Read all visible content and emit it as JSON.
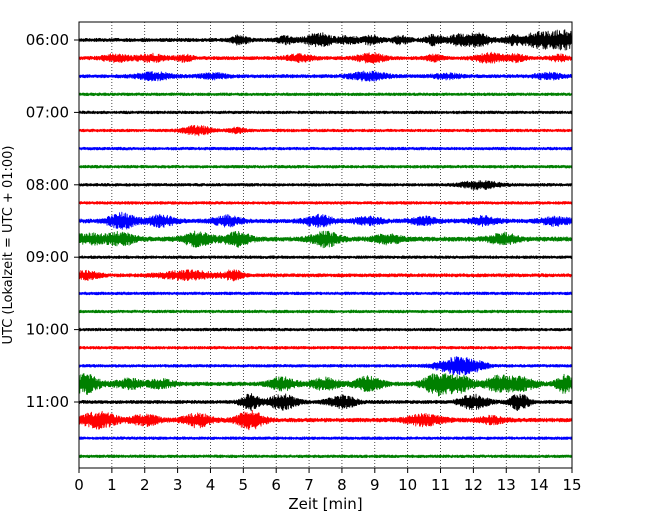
{
  "chart_data": {
    "type": "line",
    "title": "",
    "xlabel": "Zeit  [min]",
    "ylabel": "UTC (Lokalzeit = UTC + 01:00)",
    "xlim": [
      0,
      15
    ],
    "x_ticks": [
      0,
      1,
      2,
      3,
      4,
      5,
      6,
      7,
      8,
      9,
      10,
      11,
      12,
      13,
      14,
      15
    ],
    "y_ticks": [
      {
        "label": "06:00",
        "row": 0
      },
      {
        "label": "07:00",
        "row": 4
      },
      {
        "label": "08:00",
        "row": 8
      },
      {
        "label": "09:00",
        "row": 12
      },
      {
        "label": "10:00",
        "row": 16
      },
      {
        "label": "11:00",
        "row": 20
      }
    ],
    "grid": "vertical dotted at each minute",
    "row_color_cycle": [
      "#000000",
      "#ff0000",
      "#0000ff",
      "#008000"
    ],
    "rows": [
      {
        "start": "06:00",
        "color": "#000000",
        "base": 0.3,
        "bursts": [
          [
            4.9,
            0.7,
            0.2
          ],
          [
            6.3,
            0.6,
            0.2
          ],
          [
            7.3,
            1.1,
            0.3
          ],
          [
            8.2,
            0.6,
            0.2
          ],
          [
            8.9,
            0.8,
            0.2
          ],
          [
            9.8,
            0.6,
            0.2
          ],
          [
            10.8,
            0.8,
            0.2
          ],
          [
            11.5,
            0.7,
            0.2
          ],
          [
            12.1,
            1.1,
            0.3
          ],
          [
            13.2,
            0.7,
            0.2
          ],
          [
            13.9,
            1.1,
            0.3
          ],
          [
            14.5,
            1.2,
            0.3
          ],
          [
            14.9,
            1.0,
            0.2
          ]
        ]
      },
      {
        "start": "06:15",
        "color": "#ff0000",
        "base": 0.3,
        "bursts": [
          [
            1.1,
            0.6,
            0.3
          ],
          [
            2.2,
            0.6,
            0.3
          ],
          [
            3.2,
            0.5,
            0.2
          ],
          [
            6.7,
            0.6,
            0.3
          ],
          [
            8.9,
            0.8,
            0.3
          ],
          [
            10.8,
            0.5,
            0.2
          ],
          [
            12.5,
            0.8,
            0.3
          ],
          [
            13.3,
            0.6,
            0.2
          ],
          [
            14.6,
            0.5,
            0.2
          ]
        ]
      },
      {
        "start": "06:30",
        "color": "#0000ff",
        "base": 0.3,
        "bursts": [
          [
            2.3,
            0.6,
            0.4
          ],
          [
            4.1,
            0.4,
            0.3
          ],
          [
            8.8,
            0.7,
            0.4
          ],
          [
            11.2,
            0.4,
            0.3
          ],
          [
            14.3,
            0.5,
            0.3
          ]
        ]
      },
      {
        "start": "06:45",
        "color": "#008000",
        "base": 0.25,
        "bursts": []
      },
      {
        "start": "07:00",
        "color": "#000000",
        "base": 0.25,
        "bursts": []
      },
      {
        "start": "07:15",
        "color": "#ff0000",
        "base": 0.25,
        "bursts": [
          [
            3.6,
            0.8,
            0.3
          ],
          [
            4.8,
            0.4,
            0.2
          ]
        ]
      },
      {
        "start": "07:30",
        "color": "#0000ff",
        "base": 0.25,
        "bursts": []
      },
      {
        "start": "07:45",
        "color": "#008000",
        "base": 0.25,
        "bursts": []
      },
      {
        "start": "08:00",
        "color": "#000000",
        "base": 0.25,
        "bursts": [
          [
            12.2,
            0.7,
            0.4
          ]
        ]
      },
      {
        "start": "08:15",
        "color": "#ff0000",
        "base": 0.25,
        "bursts": []
      },
      {
        "start": "08:30",
        "color": "#0000ff",
        "base": 0.35,
        "bursts": [
          [
            1.3,
            1.3,
            0.3
          ],
          [
            2.5,
            0.9,
            0.3
          ],
          [
            4.5,
            0.8,
            0.3
          ],
          [
            7.3,
            0.9,
            0.3
          ],
          [
            8.8,
            0.6,
            0.3
          ],
          [
            10.5,
            0.6,
            0.3
          ],
          [
            12.3,
            0.7,
            0.3
          ],
          [
            14.5,
            0.7,
            0.3
          ]
        ]
      },
      {
        "start": "08:45",
        "color": "#008000",
        "base": 0.4,
        "bursts": [
          [
            0.3,
            0.8,
            0.4
          ],
          [
            1.3,
            1.0,
            0.3
          ],
          [
            3.6,
            1.2,
            0.3
          ],
          [
            4.8,
            1.1,
            0.3
          ],
          [
            7.5,
            1.2,
            0.3
          ],
          [
            9.4,
            0.7,
            0.3
          ],
          [
            12.9,
            0.9,
            0.3
          ]
        ]
      },
      {
        "start": "09:00",
        "color": "#000000",
        "base": 0.25,
        "bursts": []
      },
      {
        "start": "09:15",
        "color": "#ff0000",
        "base": 0.3,
        "bursts": [
          [
            0.2,
            0.7,
            0.3
          ],
          [
            3.3,
            0.7,
            0.6
          ],
          [
            4.7,
            0.8,
            0.2
          ]
        ]
      },
      {
        "start": "09:30",
        "color": "#0000ff",
        "base": 0.25,
        "bursts": []
      },
      {
        "start": "09:45",
        "color": "#008000",
        "base": 0.25,
        "bursts": []
      },
      {
        "start": "10:00",
        "color": "#000000",
        "base": 0.25,
        "bursts": []
      },
      {
        "start": "10:15",
        "color": "#ff0000",
        "base": 0.25,
        "bursts": []
      },
      {
        "start": "10:30",
        "color": "#0000ff",
        "base": 0.25,
        "bursts": [
          [
            11.4,
            1.3,
            0.4
          ],
          [
            12.0,
            0.7,
            0.3
          ]
        ]
      },
      {
        "start": "10:45",
        "color": "#008000",
        "base": 0.35,
        "bursts": [
          [
            0.2,
            1.6,
            0.3
          ],
          [
            1.5,
            0.8,
            0.3
          ],
          [
            2.5,
            0.7,
            0.3
          ],
          [
            6.2,
            1.0,
            0.3
          ],
          [
            7.5,
            1.0,
            0.3
          ],
          [
            8.8,
            1.2,
            0.3
          ],
          [
            10.9,
            1.8,
            0.3
          ],
          [
            11.6,
            1.3,
            0.3
          ],
          [
            12.8,
            1.4,
            0.3
          ],
          [
            13.5,
            1.0,
            0.3
          ],
          [
            14.8,
            1.5,
            0.2
          ]
        ]
      },
      {
        "start": "11:00",
        "color": "#000000",
        "base": 0.3,
        "bursts": [
          [
            5.2,
            1.3,
            0.2
          ],
          [
            6.2,
            1.3,
            0.3
          ],
          [
            8.0,
            1.1,
            0.3
          ],
          [
            12.0,
            1.2,
            0.3
          ],
          [
            13.4,
            1.4,
            0.2
          ]
        ]
      },
      {
        "start": "11:15",
        "color": "#ff0000",
        "base": 0.35,
        "bursts": [
          [
            0.6,
            1.3,
            0.4
          ],
          [
            2.0,
            0.9,
            0.3
          ],
          [
            3.6,
            1.1,
            0.3
          ],
          [
            5.2,
            1.5,
            0.3
          ],
          [
            10.5,
            0.9,
            0.4
          ],
          [
            12.5,
            0.6,
            0.3
          ]
        ]
      },
      {
        "start": "11:30",
        "color": "#0000ff",
        "base": 0.25,
        "bursts": []
      },
      {
        "start": "11:45",
        "color": "#008000",
        "base": 0.25,
        "bursts": []
      }
    ]
  }
}
